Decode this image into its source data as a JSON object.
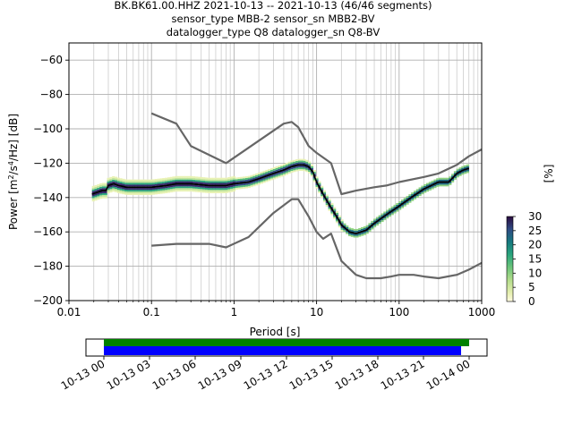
{
  "title": {
    "line1": "BK.BK61.00.HHZ   2021-10-13 -- 2021-10-13  (46/46 segments)",
    "line2": "sensor_type MBB-2 sensor_sn MBB2-BV",
    "line3": "datalogger_type Q8 datalogger_sn Q8-BV"
  },
  "chart_data": [
    {
      "type": "heatmap",
      "title": "BK.BK61.00.HHZ   2021-10-13 -- 2021-10-13  (46/46 segments)",
      "subtitle": "sensor_type MBB-2 sensor_sn MBB2-BV / datalogger_type Q8 datalogger_sn Q8-BV",
      "xlabel": "Period [s]",
      "ylabel": "Power [m²/s⁴/Hz] [dB]",
      "ylabel_parts": {
        "a": "Power [m",
        "b": "2",
        "c": "/s",
        "d": "4",
        "e": "/Hz] [dB]"
      },
      "xscale": "log",
      "xlim": [
        0.01,
        1000
      ],
      "ylim": [
        -200,
        -50
      ],
      "xticks": [
        0.01,
        0.1,
        1,
        10,
        100,
        1000
      ],
      "xticklabels": [
        "0.01",
        "0.1",
        "1",
        "10",
        "100",
        "1000"
      ],
      "yticks": [
        -200,
        -180,
        -160,
        -140,
        -120,
        -100,
        -80,
        -60
      ],
      "yticklabels": [
        "−200",
        "−180",
        "−160",
        "−140",
        "−120",
        "−100",
        "−80",
        "−60"
      ],
      "grid": true,
      "colorbar": {
        "label": "[%]",
        "range": [
          0,
          30
        ],
        "ticks": [
          0,
          5,
          10,
          15,
          20,
          25,
          30
        ],
        "ticklabels": [
          "0",
          "5",
          "10",
          "15",
          "20",
          "25",
          "30"
        ]
      },
      "series": [
        {
          "color": "#000000",
          "x": [
            0.019,
            0.022,
            0.025,
            0.028,
            0.03,
            0.035,
            0.04,
            0.05,
            0.07,
            0.1,
            0.15,
            0.2,
            0.3,
            0.5,
            0.8,
            1,
            1.5,
            2,
            3,
            4,
            5,
            6,
            7,
            8,
            9,
            10,
            12,
            15,
            18,
            20,
            25,
            30,
            40,
            50,
            70,
            100,
            150,
            200,
            300,
            400,
            500,
            600,
            700
          ],
          "y": [
            -138,
            -137,
            -136,
            -136,
            -133,
            -132,
            -133,
            -134,
            -134,
            -134,
            -133,
            -132,
            -132,
            -133,
            -133,
            -132,
            -131,
            -129,
            -126,
            -124,
            -122,
            -121,
            -121,
            -122,
            -125,
            -131,
            -138,
            -146,
            -152,
            -156,
            -160,
            -161,
            -159,
            -155,
            -150,
            -145,
            -139,
            -135,
            -131,
            -131,
            -126,
            -124,
            -123
          ]
        },
        {
          "color": "#666666",
          "x": [
            0.1,
            0.2,
            0.3,
            0.8,
            4,
            5,
            6,
            8,
            10,
            15,
            20,
            30,
            50,
            70,
            100,
            200,
            300,
            500,
            700,
            1000
          ],
          "y": [
            -91,
            -97,
            -110,
            -120,
            -97,
            -96,
            -99,
            -110,
            -114,
            -120,
            -138,
            -136,
            -134,
            -133,
            -131,
            -128,
            -126,
            -121,
            -116,
            -112
          ]
        },
        {
          "color": "#666666",
          "x": [
            0.1,
            0.2,
            0.3,
            0.5,
            0.8,
            1.5,
            3,
            5,
            6,
            8,
            10,
            12,
            15,
            20,
            30,
            40,
            60,
            80,
            100,
            150,
            200,
            300,
            500,
            700,
            1000
          ],
          "y": [
            -168,
            -167,
            -167,
            -167,
            -169,
            -163,
            -149,
            -141,
            -141,
            -151,
            -160,
            -164,
            -161,
            -177,
            -185,
            -187,
            -187,
            -186,
            -185,
            -185,
            -186,
            -187,
            -185,
            -182,
            -178
          ]
        }
      ]
    },
    {
      "type": "bar",
      "xticklabels": [
        "10-13 00",
        "10-13 03",
        "10-13 06",
        "10-13 09",
        "10-13 12",
        "10-13 15",
        "10-13 18",
        "10-13 21",
        "10-14 00"
      ],
      "series": [
        {
          "color": "#008000",
          "start": "10-13 00:00",
          "end": "10-14 00:00"
        },
        {
          "color": "#0000ff",
          "start": "10-13 00:00",
          "end": "10-13 23:30"
        }
      ]
    }
  ]
}
